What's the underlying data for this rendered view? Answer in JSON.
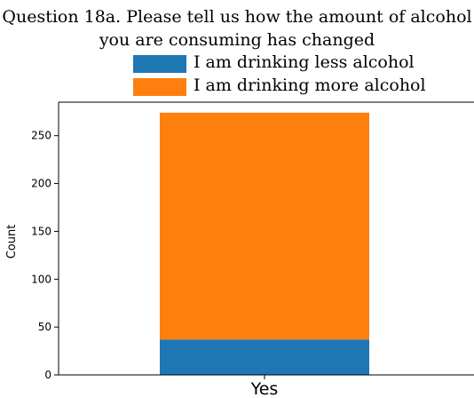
{
  "chart_data": {
    "type": "bar",
    "stacked": true,
    "title": "Question 18a. Please tell us how the amount of alcohol you are consuming has changed",
    "title_lines": [
      "Question 18a. Please tell us how the amount of alcohol",
      "you are consuming has changed"
    ],
    "xlabel": "",
    "ylabel": "Count",
    "categories": [
      "Yes"
    ],
    "series": [
      {
        "name": "I am drinking less alcohol",
        "values": [
          37
        ],
        "color": "#1f77b4"
      },
      {
        "name": "I am drinking more alcohol",
        "values": [
          237
        ],
        "color": "#ff7f0e"
      }
    ],
    "ylim": [
      0,
      285
    ],
    "yticks": [
      0,
      50,
      100,
      150,
      200,
      250
    ],
    "legend_placement": "top-center",
    "grid": false
  }
}
